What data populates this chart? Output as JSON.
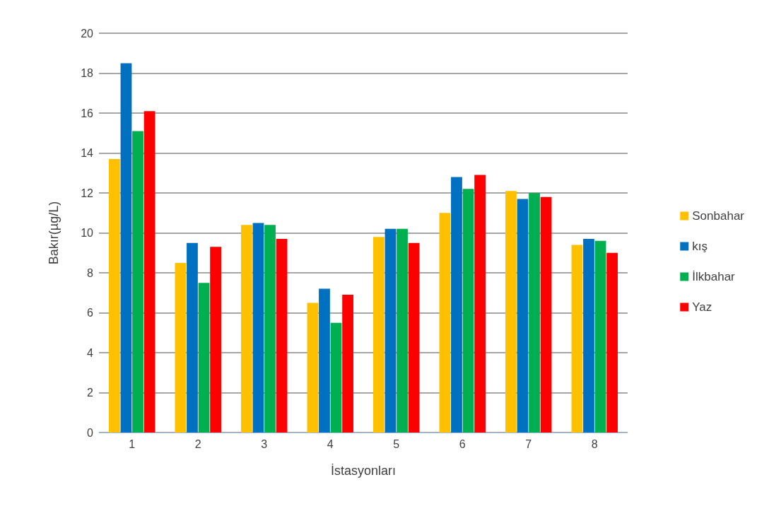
{
  "chart_data": {
    "type": "bar",
    "xlabel": "İstasyonları",
    "ylabel": "Bakır(µg/L)",
    "categories": [
      "1",
      "2",
      "3",
      "4",
      "5",
      "6",
      "7",
      "8"
    ],
    "series": [
      {
        "name": "Sonbahar",
        "color": "#ffc000",
        "values": [
          13.7,
          8.5,
          10.4,
          6.5,
          9.8,
          11.0,
          12.1,
          9.4
        ]
      },
      {
        "name": "kış",
        "color": "#0070c0",
        "values": [
          18.5,
          9.5,
          10.5,
          7.2,
          10.2,
          12.8,
          11.7,
          9.7
        ]
      },
      {
        "name": "İlkbahar",
        "color": "#00b050",
        "values": [
          15.1,
          7.5,
          10.4,
          5.5,
          10.2,
          12.2,
          12.0,
          9.6
        ]
      },
      {
        "name": "Yaz",
        "color": "#ff0000",
        "values": [
          16.1,
          9.3,
          9.7,
          6.9,
          9.5,
          12.9,
          11.8,
          9.0
        ]
      }
    ],
    "ylim": [
      0,
      20
    ],
    "yticks": [
      0,
      2,
      4,
      6,
      8,
      10,
      12,
      14,
      16,
      18,
      20
    ],
    "grid": "y",
    "legend": "right"
  }
}
